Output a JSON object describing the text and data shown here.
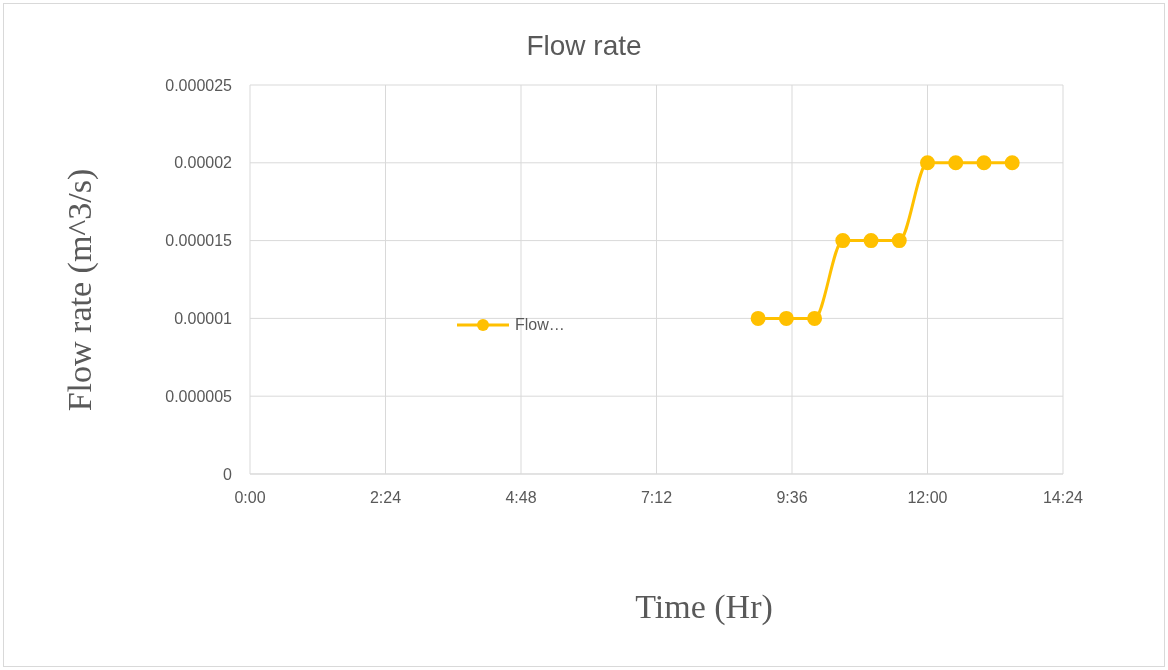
{
  "chart_data": {
    "type": "line",
    "title": "Flow rate",
    "xlabel": "Time (Hr)",
    "ylabel": "Flow rate (m^3/s)",
    "x": [
      9,
      9.5,
      10,
      10.5,
      11,
      11.5,
      12,
      12.5,
      13,
      13.5
    ],
    "series": [
      {
        "name": "Flow…",
        "color": "#ffc000",
        "values": [
          1e-05,
          1e-05,
          1e-05,
          1.5e-05,
          1.5e-05,
          1.5e-05,
          2e-05,
          2e-05,
          2e-05,
          2e-05
        ]
      }
    ],
    "xlim": [
      0,
      14.4
    ],
    "xticks": [
      {
        "value": 0,
        "label": "0:00"
      },
      {
        "value": 2.4,
        "label": "2:24"
      },
      {
        "value": 4.8,
        "label": "4:48"
      },
      {
        "value": 7.2,
        "label": "7:12"
      },
      {
        "value": 9.6,
        "label": "9:36"
      },
      {
        "value": 12,
        "label": "12:00"
      },
      {
        "value": 14.4,
        "label": "14:24"
      }
    ],
    "ylim": [
      0,
      2.5e-05
    ],
    "yticks": [
      {
        "value": 0,
        "label": "0"
      },
      {
        "value": 5e-06,
        "label": "0.000005"
      },
      {
        "value": 1e-05,
        "label": "0.00001"
      },
      {
        "value": 1.5e-05,
        "label": "0.000015"
      },
      {
        "value": 2e-05,
        "label": "0.00002"
      },
      {
        "value": 2.5e-05,
        "label": "0.000025"
      }
    ],
    "grid": true,
    "legend": "center",
    "marker": "circle",
    "line_style": "solid"
  }
}
